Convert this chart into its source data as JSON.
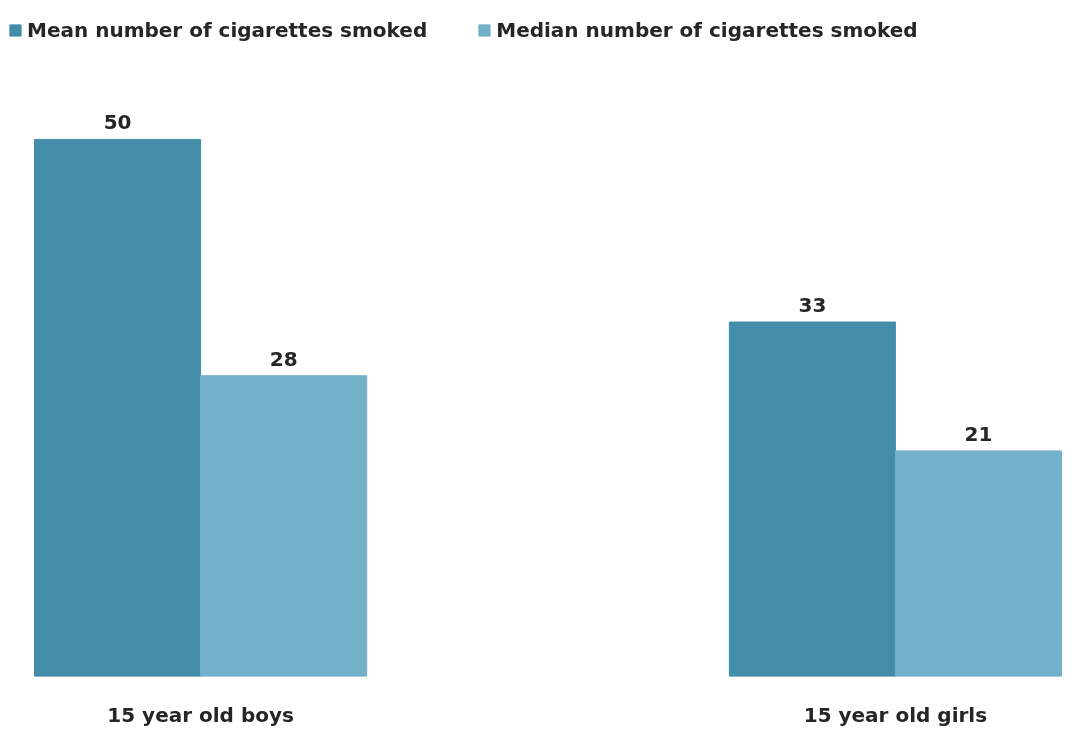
{
  "chart_data": {
    "type": "bar",
    "categories": [
      "15 year old boys",
      "15 year old girls"
    ],
    "series": [
      {
        "name": "Mean number of cigarettes smoked",
        "color": "#438da8",
        "values": [
          50,
          33
        ]
      },
      {
        "name": "Median number of cigarettes smoked",
        "color": "#72b1c9",
        "values": [
          28,
          21
        ]
      }
    ],
    "data_labels": true,
    "legend": "top left",
    "grid": false
  }
}
